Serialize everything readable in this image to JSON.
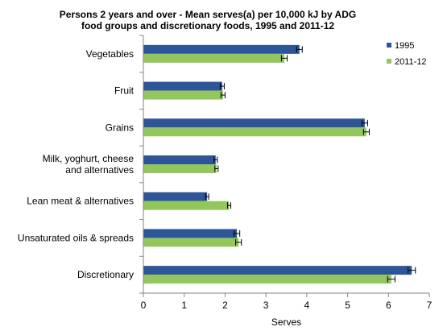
{
  "chart_data": {
    "type": "bar",
    "orientation": "horizontal",
    "title": "Persons 2 years and over - Mean serves(a) per 10,000 kJ by ADG food groups and discretionary foods, 1995 and 2011-12",
    "title_lines": [
      "Persons  2 years and over - Mean serves(a)  per 10,000 kJ by ADG",
      "food groups and discretionary foods, 1995 and 2011-12"
    ],
    "categories": [
      "Vegetables",
      "Fruit",
      "Grains",
      "Milk, yoghurt, cheese and alternatives",
      "Lean meat & alternatives",
      "Unsaturated oils & spreads",
      "Discretionary"
    ],
    "category_label_lines": [
      [
        "Vegetables"
      ],
      [
        "Fruit"
      ],
      [
        "Grains"
      ],
      [
        "Milk, yoghurt, cheese",
        "and alternatives"
      ],
      [
        "Lean meat & alternatives"
      ],
      [
        "Unsaturated oils & spreads"
      ],
      [
        "Discretionary"
      ]
    ],
    "series": [
      {
        "name": "1995",
        "color": "#2e5597",
        "values": [
          3.82,
          1.93,
          5.42,
          1.77,
          1.56,
          2.29,
          6.57
        ],
        "errors": [
          0.07,
          0.05,
          0.07,
          0.04,
          0.04,
          0.07,
          0.09
        ]
      },
      {
        "name": "2011-12",
        "color": "#93c75d",
        "values": [
          3.45,
          1.95,
          5.46,
          1.79,
          2.1,
          2.33,
          6.07
        ],
        "errors": [
          0.07,
          0.05,
          0.07,
          0.04,
          0.04,
          0.07,
          0.09
        ]
      }
    ],
    "xlabel": "Serves",
    "ylabel": "",
    "xlim": [
      0,
      7
    ],
    "xticks": [
      "0",
      "1",
      "2",
      "3",
      "4",
      "5",
      "6",
      "7"
    ],
    "error_bars": true,
    "legend_position": "right",
    "grid": false
  }
}
